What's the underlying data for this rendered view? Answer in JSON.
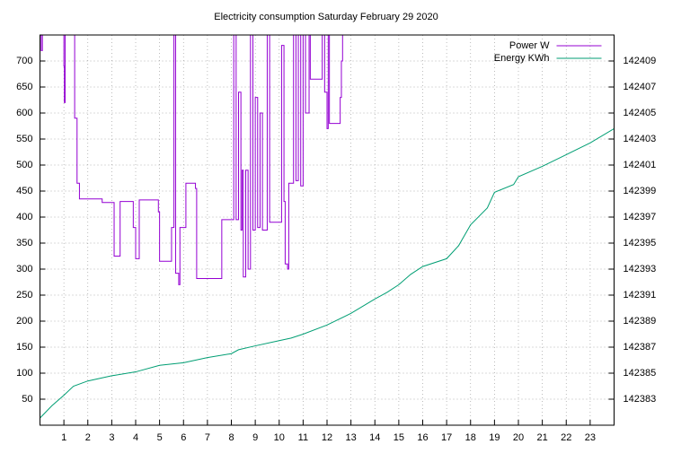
{
  "chart_data": {
    "type": "line",
    "title": "Electricity consumption Saturday February 29 2020",
    "xlim": [
      0,
      24
    ],
    "xticks": [
      1,
      2,
      3,
      4,
      5,
      6,
      7,
      8,
      9,
      10,
      11,
      12,
      13,
      14,
      15,
      16,
      17,
      18,
      19,
      20,
      21,
      22,
      23
    ],
    "ylim": [
      0,
      750
    ],
    "yticks": [
      50,
      100,
      150,
      200,
      250,
      300,
      350,
      400,
      450,
      500,
      550,
      600,
      650,
      700
    ],
    "y2lim": [
      142381,
      142411
    ],
    "y2ticks": [
      142383,
      142385,
      142387,
      142389,
      142391,
      142393,
      142395,
      142397,
      142399,
      142401,
      142403,
      142405,
      142407,
      142409
    ],
    "grid": true,
    "legend": "top-right",
    "series": [
      {
        "name": "Power W",
        "color": "#9400d3",
        "step": true,
        "x": [
          0,
          0.05,
          0.1,
          1.0,
          1.02,
          1.05,
          1.45,
          1.55,
          1.65,
          2.6,
          3.1,
          3.35,
          3.9,
          4.0,
          4.15,
          4.95,
          5.0,
          5.5,
          5.6,
          5.67,
          5.8,
          5.85,
          6.1,
          6.5,
          6.55,
          7.6,
          8.1,
          8.2,
          8.3,
          8.4,
          8.45,
          8.5,
          8.6,
          8.7,
          8.8,
          8.9,
          9.0,
          9.1,
          9.2,
          9.3,
          9.5,
          9.6,
          10.1,
          10.2,
          10.25,
          10.35,
          10.4,
          10.6,
          10.7,
          10.8,
          10.9,
          11.0,
          11.1,
          11.25,
          11.3,
          11.8,
          11.9,
          12.0,
          12.05,
          12.1,
          12.55,
          12.6,
          12.65
        ],
        "values": [
          760,
          720,
          760,
          690,
          620,
          760,
          590,
          465,
          435,
          428,
          325,
          430,
          380,
          320,
          433,
          410,
          315,
          380,
          760,
          292,
          270,
          380,
          465,
          455,
          282,
          395,
          760,
          395,
          640,
          375,
          490,
          285,
          490,
          300,
          760,
          375,
          630,
          380,
          600,
          375,
          760,
          390,
          730,
          430,
          310,
          300,
          465,
          760,
          470,
          760,
          460,
          760,
          600,
          760,
          665,
          760,
          640,
          570,
          760,
          580,
          630,
          700,
          760
        ]
      },
      {
        "name": "Energy KWh",
        "color": "#009e73",
        "axis": "y2",
        "x": [
          0,
          0.5,
          1.0,
          1.4,
          2,
          3,
          4,
          5,
          6,
          7,
          8,
          8.3,
          9,
          10,
          10.5,
          11,
          12,
          13,
          14,
          14.5,
          15,
          15.5,
          16,
          17,
          17.5,
          18,
          18.7,
          19,
          19.8,
          20,
          21,
          22,
          23,
          24
        ],
        "values": [
          142381.55,
          142382.5,
          142383.3,
          142384.0,
          142384.4,
          142384.8,
          142385.1,
          142385.6,
          142385.8,
          142386.2,
          142386.5,
          142386.8,
          142387.1,
          142387.5,
          142387.7,
          142388.0,
          142388.7,
          142389.6,
          142390.7,
          142391.2,
          142391.8,
          142392.6,
          142393.2,
          142393.8,
          142394.8,
          142396.4,
          142397.7,
          142398.9,
          142399.5,
          142400.1,
          142400.9,
          142401.8,
          142402.7,
          142403.8
        ]
      }
    ]
  }
}
